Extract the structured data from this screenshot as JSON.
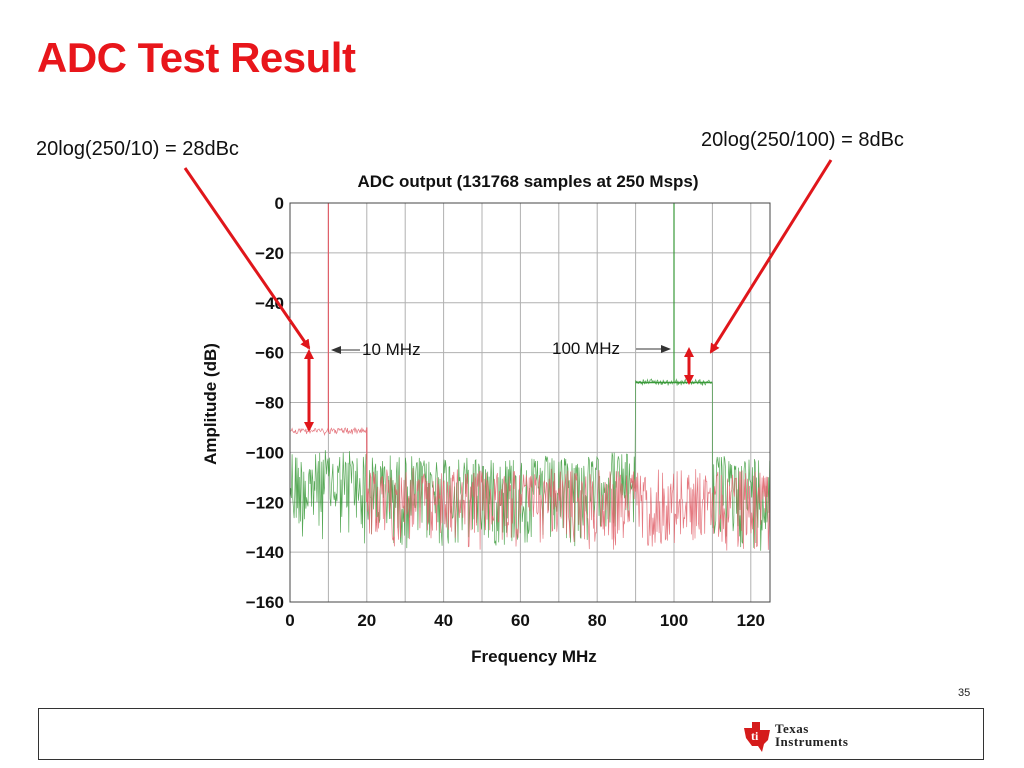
{
  "slide": {
    "title": "ADC Test Result",
    "page_number": "35"
  },
  "annotations": {
    "left_formula": "20log(250/10) = 28dBc",
    "right_formula": "20log(250/100) = 8dBc",
    "label_10mhz": "10 MHz",
    "label_100mhz": "100 MHz"
  },
  "colors": {
    "title": "#e8161b",
    "annotation_arrow": "#e0161b",
    "series_10mhz": "#e0606a",
    "series_100mhz": "#3a9a3a",
    "grid": "#b0b0b0"
  },
  "chart_data": {
    "type": "line",
    "title": "ADC output (131768 samples at 250 Msps)",
    "xlabel": "Frequency MHz",
    "ylabel": "Amplitude (dB)",
    "xlim": [
      0,
      125
    ],
    "ylim": [
      -160,
      0
    ],
    "xticks": [
      0,
      20,
      40,
      60,
      80,
      100,
      120
    ],
    "yticks": [
      0,
      -20,
      -40,
      -60,
      -80,
      -100,
      -120,
      -140,
      -160
    ],
    "grid": true,
    "series": [
      {
        "color": "#e0606a",
        "tone_freq_mhz": 10,
        "tone_level_db": 0,
        "noise_band_mhz": [
          0,
          20
        ],
        "noise_band_level_db": -92,
        "noise_floor_db": -120,
        "x": [
          0,
          10,
          10,
          10,
          20,
          20,
          125
        ],
        "y": [
          -92,
          -92,
          0,
          -92,
          -91,
          -120,
          -120
        ]
      },
      {
        "color": "#3a9a3a",
        "tone_freq_mhz": 100,
        "tone_level_db": 0,
        "noise_band_mhz": [
          90,
          110
        ],
        "noise_band_level_db": -72,
        "noise_floor_db": -112,
        "x": [
          0,
          90,
          90,
          100,
          100,
          100,
          110,
          110,
          125
        ],
        "y": [
          -112,
          -105,
          -72,
          -72,
          0,
          -72,
          -72,
          -105,
          -105
        ]
      }
    ]
  },
  "footer": {
    "logo_line1": "Texas",
    "logo_line2": "Instruments"
  }
}
